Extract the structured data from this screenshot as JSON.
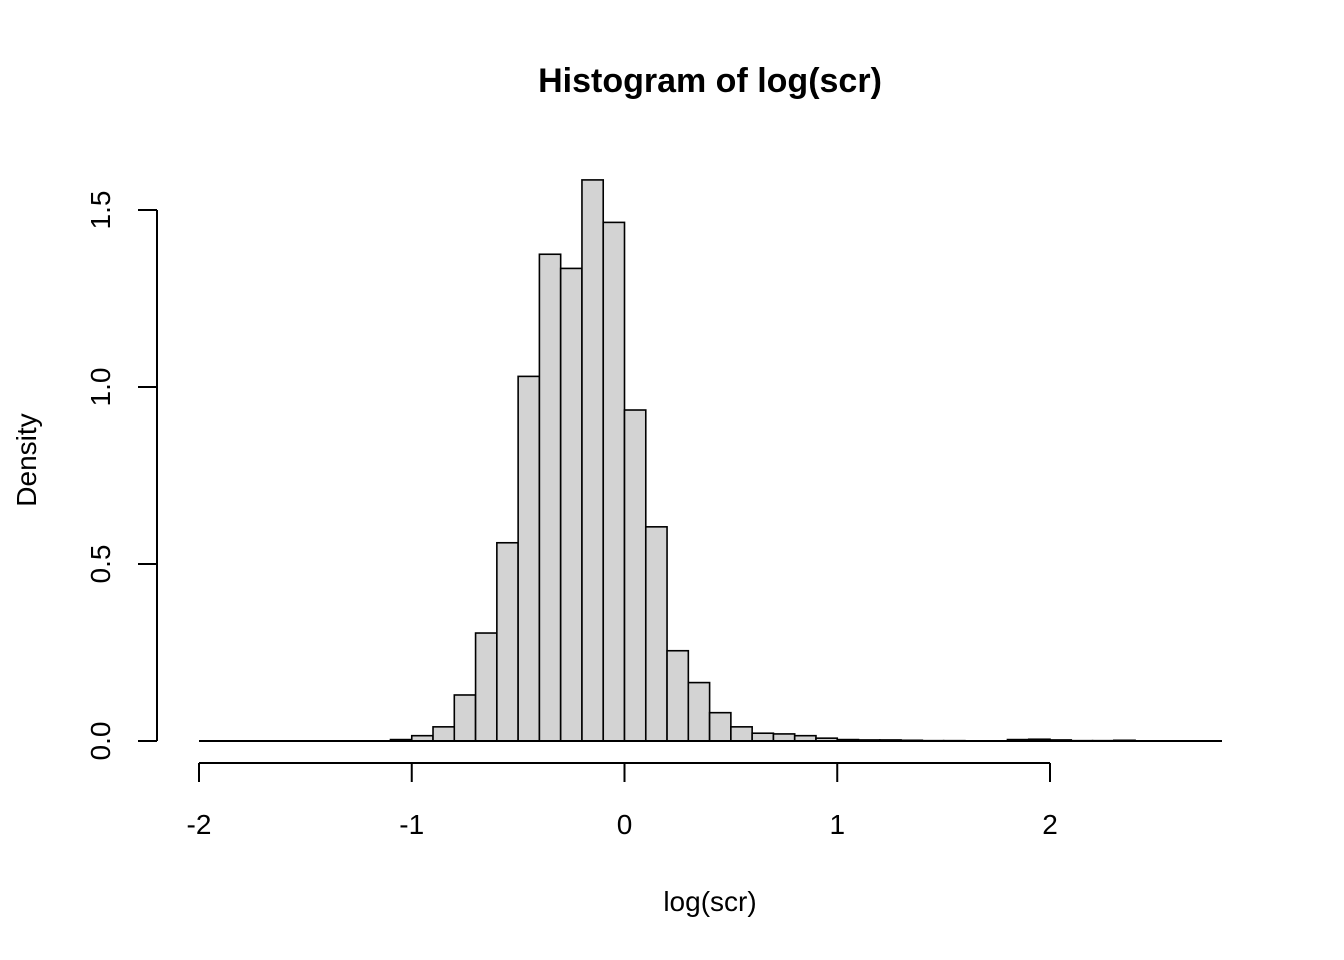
{
  "chart_data": {
    "type": "bar",
    "title": "Histogram of log(scr)",
    "xlabel": "log(scr)",
    "ylabel": "Density",
    "bin_width": 0.1,
    "bins_start": -2.0,
    "values": [
      0.0,
      0.0,
      0.0,
      0.0,
      0.0,
      0.0,
      0.0,
      0.0,
      0.0,
      0.004,
      0.015,
      0.04,
      0.13,
      0.305,
      0.56,
      1.03,
      1.375,
      1.335,
      1.585,
      1.465,
      0.935,
      0.605,
      0.255,
      0.165,
      0.08,
      0.04,
      0.022,
      0.02,
      0.015,
      0.008,
      0.004,
      0.003,
      0.003,
      0.002,
      0.001,
      0.001,
      0.0,
      0.0,
      0.004,
      0.005,
      0.003,
      0.001,
      0.001,
      0.002,
      0.0,
      0.0,
      0.0,
      0.0
    ],
    "xlim": [
      -2.0,
      2.8
    ],
    "ylim": [
      0.0,
      1.6
    ],
    "x_ticks": [
      -2,
      -1,
      0,
      1,
      2
    ],
    "x_tick_labels": [
      "-2",
      "-1",
      "0",
      "1",
      "2"
    ],
    "y_ticks": [
      0.0,
      0.5,
      1.0,
      1.5
    ],
    "y_tick_labels": [
      "0.0",
      "0.5",
      "1.0",
      "1.5"
    ],
    "bar_fill": "#d3d3d3",
    "bar_stroke": "#000000",
    "grid": false,
    "legend": "none"
  }
}
